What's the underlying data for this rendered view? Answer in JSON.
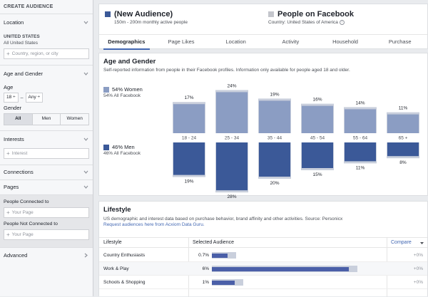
{
  "sidebar": {
    "header": "CREATE AUDIENCE",
    "location": {
      "title": "Location",
      "country": "UNITED STATES",
      "scope": "All United States",
      "placeholder": "Country, region, or city"
    },
    "age_gender": {
      "title": "Age and Gender",
      "age_label": "Age",
      "age_min": "18",
      "age_max": "Any",
      "gender_label": "Gender",
      "genders": [
        "All",
        "Men",
        "Women"
      ],
      "selected_gender": "All"
    },
    "interests": {
      "title": "Interests",
      "placeholder": "Interest"
    },
    "connections": {
      "title": "Connections"
    },
    "pages": {
      "title": "Pages",
      "connected_label": "People Connected to",
      "connected_placeholder": "Your Page",
      "not_connected_label": "People Not Connected to",
      "not_connected_placeholder": "Your Page"
    },
    "advanced": {
      "title": "Advanced"
    }
  },
  "audience": {
    "new_title": "(New Audience)",
    "new_sub": "150m - 200m monthly active people",
    "new_color": "#3b5998",
    "fb_title": "People on Facebook",
    "fb_sub": "Country: United States of America",
    "fb_color": "#c4c6cc"
  },
  "tabs": [
    "Demographics",
    "Page Likes",
    "Location",
    "Activity",
    "Household",
    "Purchase"
  ],
  "active_tab": "Demographics",
  "age_gender_card": {
    "title": "Age and Gender",
    "subtitle": "Self-reported information from people in their Facebook profiles. Information only available for people aged 18 and older.",
    "women_label": "54% Women",
    "women_sub": "54% All Facebook",
    "men_label": "46% Men",
    "men_sub": "46% All Facebook"
  },
  "chart_data": {
    "type": "bar",
    "categories": [
      "18 - 24",
      "25 - 34",
      "35 - 44",
      "45 - 54",
      "55 - 64",
      "65 +"
    ],
    "series": [
      {
        "name": "Women",
        "values": [
          17,
          24,
          19,
          16,
          14,
          11
        ],
        "labels": [
          "17%",
          "24%",
          "19%",
          "16%",
          "14%",
          "11%"
        ],
        "color": "#8b9dc3"
      },
      {
        "name": "Men",
        "values": [
          19,
          28,
          20,
          15,
          11,
          8
        ],
        "labels": [
          "19%",
          "28%",
          "20%",
          "15%",
          "11%",
          "8%"
        ],
        "color": "#3b5998"
      }
    ],
    "benchmark_color": "#c9cfdc",
    "ylim": [
      0,
      30
    ]
  },
  "lifestyle": {
    "title": "Lifestyle",
    "subtitle": "US demographic and interest data based on purchase behavior, brand affinity and other activities. Source: Personicx",
    "link": "Request audiences here from Acxiom Data Guru.",
    "col_lifestyle": "Lifestyle",
    "col_selected": "Selected Audience",
    "col_compare": "Compare",
    "rows": [
      {
        "name": "Country Enthusiasts",
        "pct": "0.7%",
        "value": 0.7,
        "compare": "+0%"
      },
      {
        "name": "Work & Play",
        "pct": "6%",
        "value": 6,
        "compare": "+0%"
      },
      {
        "name": "Schools & Shopping",
        "pct": "1%",
        "value": 1,
        "compare": "+0%"
      }
    ],
    "bar_max": 7.2
  }
}
